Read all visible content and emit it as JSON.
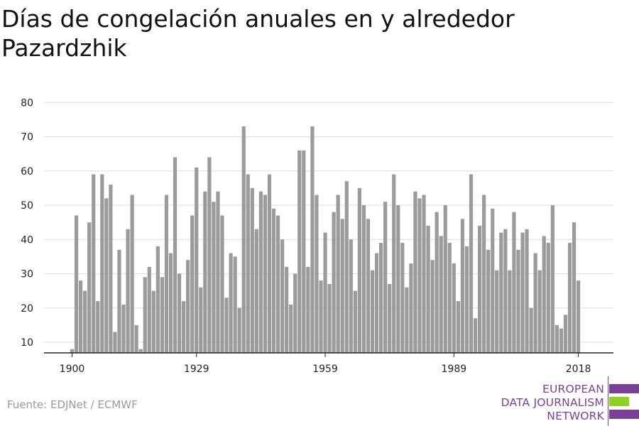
{
  "title": "Días de congelación anuales en y alrededor Pazardzhik",
  "source": "Fuente: EDJNet / ECMWF",
  "logo": {
    "lines": [
      "EUROPEAN",
      "DATA JOURNALISM",
      "NETWORK"
    ],
    "colors": {
      "purple": "#7b3f98",
      "green": "#8fd11f"
    }
  },
  "colors": {
    "bar": "#9b9b9b",
    "grid": "#dddddd",
    "axis": "#222222"
  },
  "chart_data": {
    "type": "bar",
    "title": "Días de congelación anuales en y alrededor Pazardzhik",
    "xlabel": "",
    "ylabel": "",
    "x_ticks": [
      1900,
      1929,
      1959,
      1989,
      2018
    ],
    "y_ticks": [
      10,
      20,
      30,
      40,
      50,
      60,
      70,
      80
    ],
    "ylim": [
      7,
      80
    ],
    "grid": true,
    "categories": [
      1900,
      1901,
      1902,
      1903,
      1904,
      1905,
      1906,
      1907,
      1908,
      1909,
      1910,
      1911,
      1912,
      1913,
      1914,
      1915,
      1916,
      1917,
      1918,
      1919,
      1920,
      1921,
      1922,
      1923,
      1924,
      1925,
      1926,
      1927,
      1928,
      1929,
      1930,
      1931,
      1932,
      1933,
      1934,
      1935,
      1936,
      1937,
      1938,
      1939,
      1940,
      1941,
      1942,
      1943,
      1944,
      1945,
      1946,
      1947,
      1948,
      1949,
      1950,
      1951,
      1952,
      1953,
      1954,
      1955,
      1956,
      1957,
      1958,
      1959,
      1960,
      1961,
      1962,
      1963,
      1964,
      1965,
      1966,
      1967,
      1968,
      1969,
      1970,
      1971,
      1972,
      1973,
      1974,
      1975,
      1976,
      1977,
      1978,
      1979,
      1980,
      1981,
      1982,
      1983,
      1984,
      1985,
      1986,
      1987,
      1988,
      1989,
      1990,
      1991,
      1992,
      1993,
      1994,
      1995,
      1996,
      1997,
      1998,
      1999,
      2000,
      2001,
      2002,
      2003,
      2004,
      2005,
      2006,
      2007,
      2008,
      2009,
      2010,
      2011,
      2012,
      2013,
      2014,
      2015,
      2016,
      2017,
      2018,
      2019
    ],
    "values": [
      8,
      47,
      28,
      25,
      45,
      59,
      22,
      59,
      52,
      56,
      13,
      37,
      21,
      43,
      53,
      15,
      8,
      29,
      32,
      25,
      38,
      29,
      53,
      36,
      64,
      30,
      22,
      34,
      47,
      61,
      26,
      54,
      64,
      51,
      54,
      47,
      23,
      36,
      35,
      20,
      73,
      59,
      55,
      43,
      54,
      53,
      59,
      49,
      47,
      40,
      32,
      21,
      30,
      66,
      66,
      32,
      73,
      53,
      28,
      42,
      27,
      48,
      53,
      46,
      57,
      40,
      25,
      55,
      50,
      46,
      31,
      36,
      39,
      51,
      27,
      59,
      50,
      39,
      26,
      33,
      54,
      52,
      53,
      44,
      34,
      48,
      41,
      50,
      39,
      33,
      22,
      46,
      38,
      59,
      17,
      44,
      53,
      37,
      49,
      31,
      42,
      43,
      31,
      48,
      37,
      42,
      43,
      20,
      36,
      31,
      41,
      39,
      50,
      15,
      14,
      18,
      39,
      45,
      28,
      7
    ]
  }
}
